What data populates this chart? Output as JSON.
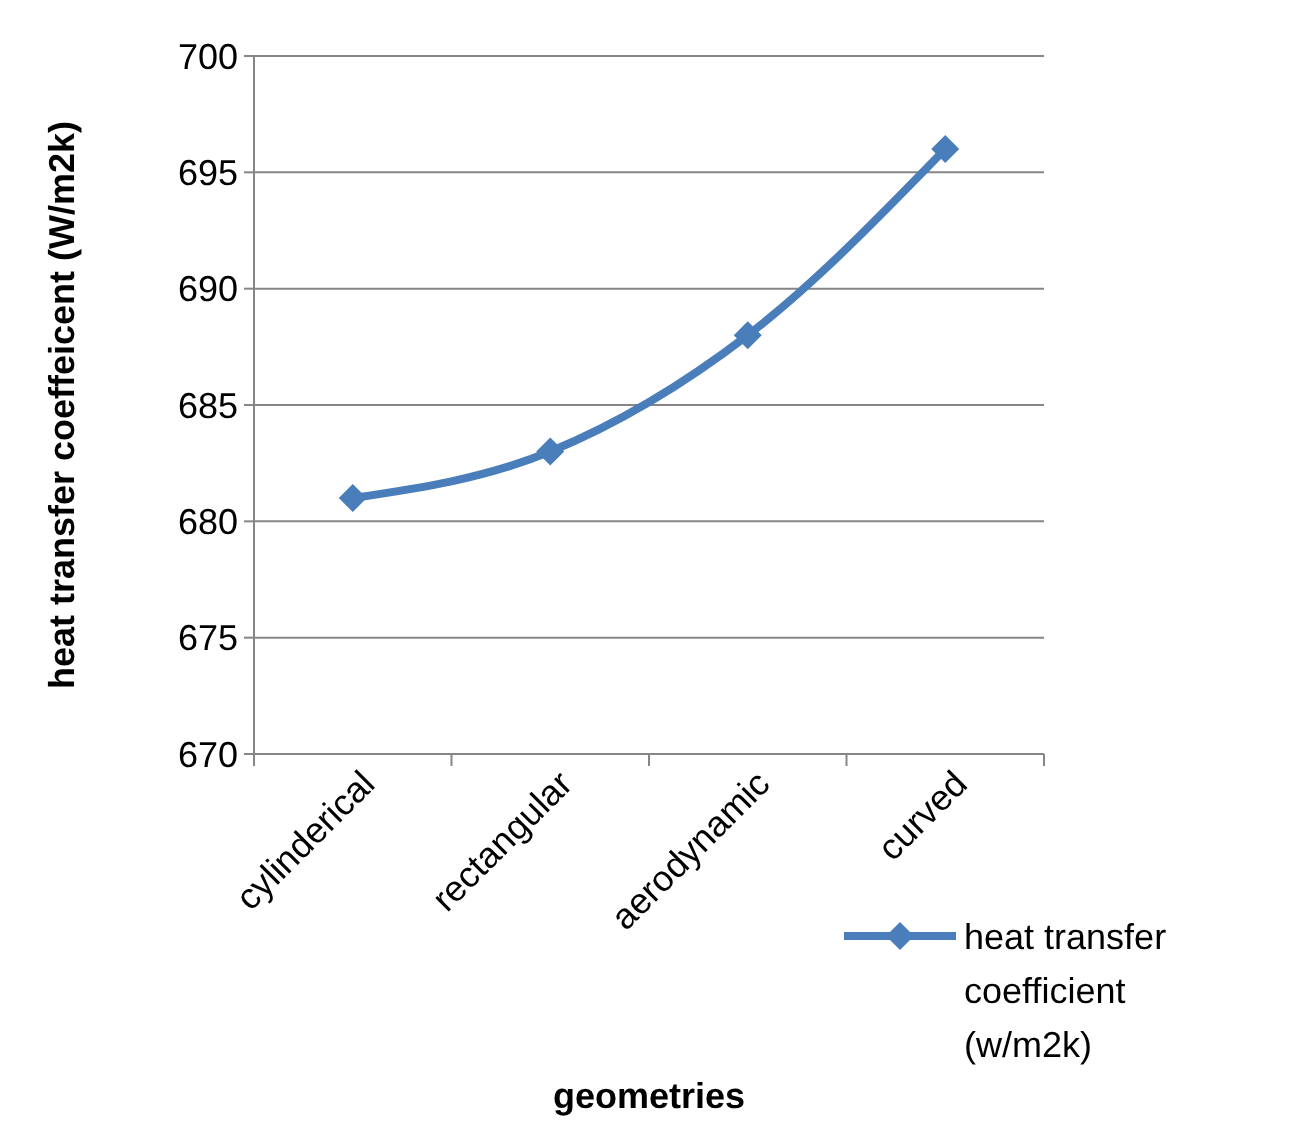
{
  "chart_data": {
    "type": "line",
    "xlabel": "geometries",
    "ylabel": "heat transfer coeffeicent (W/m2k)",
    "categories": [
      "cylinderical",
      "rectangular",
      "aerodynamic",
      "curved"
    ],
    "series": [
      {
        "name": "heat transfer coefficient (w/m2k)",
        "color": "#4a7ebb",
        "values": [
          681,
          683,
          688,
          696
        ]
      }
    ],
    "ylim": [
      670,
      700
    ],
    "yticks": [
      670,
      675,
      680,
      685,
      690,
      695,
      700
    ],
    "grid": "y",
    "legend": "bottom right",
    "marker": "diamond",
    "line_style": "solid"
  }
}
